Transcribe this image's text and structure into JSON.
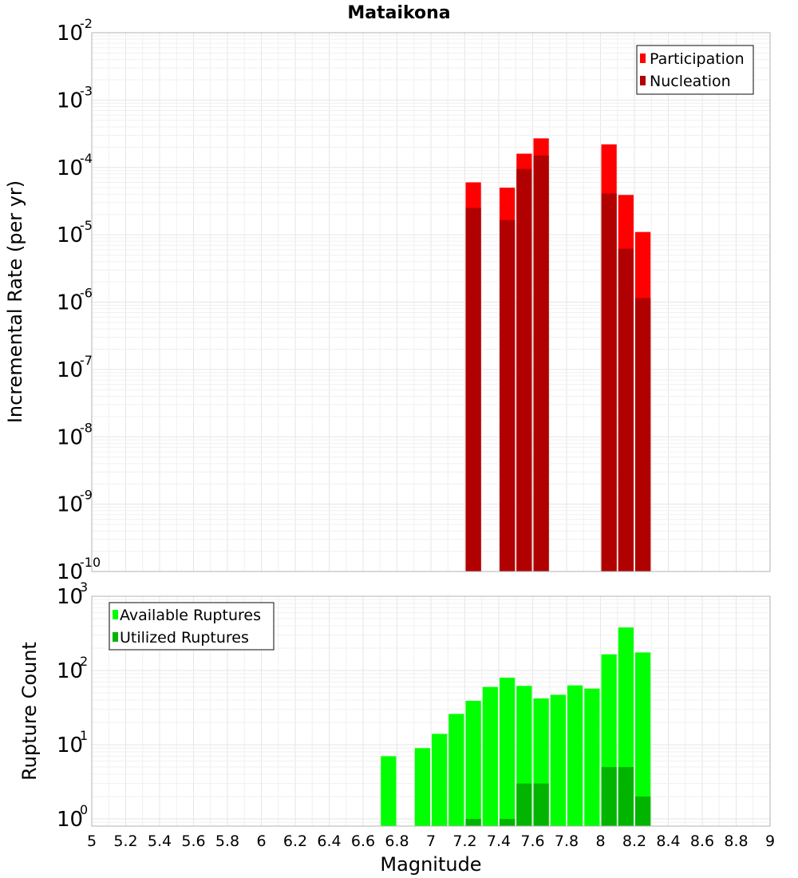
{
  "chart_data": [
    {
      "type": "bar",
      "title": "Mataikona",
      "xlabel": "",
      "ylabel": "Incremental Rate (per yr)",
      "yscale": "log",
      "ylim": [
        1e-10,
        0.01
      ],
      "xlim": [
        5,
        9
      ],
      "legend_position": "top-right",
      "bar_width": 0.1,
      "y_tick_bases": [
        "10",
        "10",
        "10",
        "10",
        "10",
        "10",
        "10",
        "10",
        "10"
      ],
      "y_tick_exps": [
        "-10",
        "-9",
        "-8",
        "-7",
        "-6",
        "-5",
        "-4",
        "-3",
        "-2"
      ],
      "series": [
        {
          "name": "Participation",
          "color": "#ff0000",
          "x": [
            7.25,
            7.45,
            7.55,
            7.65,
            8.05,
            8.15,
            8.25
          ],
          "values": [
            6e-05,
            5e-05,
            0.00016,
            0.00027,
            0.00022,
            3.9e-05,
            1.1e-05
          ]
        },
        {
          "name": "Nucleation",
          "color": "#b00000",
          "x": [
            7.25,
            7.45,
            7.55,
            7.65,
            8.05,
            8.15,
            8.25
          ],
          "values": [
            2.5e-05,
            1.65e-05,
            9.5e-05,
            0.00015,
            4.1e-05,
            6.2e-06,
            1.15e-06
          ]
        }
      ]
    },
    {
      "type": "bar",
      "title": "",
      "xlabel": "Magnitude",
      "ylabel": "Rupture Count",
      "yscale": "log",
      "ylim": [
        0.8,
        1000
      ],
      "xlim": [
        5,
        9
      ],
      "legend_position": "top-left",
      "bar_width": 0.1,
      "x_ticks": [
        "5",
        "5.2",
        "5.4",
        "5.6",
        "5.8",
        "6",
        "6.2",
        "6.4",
        "6.6",
        "6.8",
        "7",
        "7.2",
        "7.4",
        "7.6",
        "7.8",
        "8",
        "8.2",
        "8.4",
        "8.6",
        "8.8",
        "9"
      ],
      "y_tick_bases": [
        "10",
        "10",
        "10",
        "10"
      ],
      "y_tick_exps": [
        "0",
        "1",
        "2",
        "3"
      ],
      "series": [
        {
          "name": "Available Ruptures",
          "color": "#00ff00",
          "x": [
            6.75,
            6.95,
            7.05,
            7.15,
            7.25,
            7.35,
            7.45,
            7.55,
            7.65,
            7.75,
            7.85,
            7.95,
            8.05,
            8.15,
            8.25
          ],
          "values": [
            7,
            9,
            14,
            26,
            39,
            60,
            80,
            62,
            42,
            47,
            63,
            57,
            165,
            380,
            175
          ]
        },
        {
          "name": "Utilized Ruptures",
          "color": "#00b400",
          "x": [
            7.25,
            7.45,
            7.55,
            7.65,
            8.05,
            8.15,
            8.25
          ],
          "values": [
            1,
            1,
            3,
            3,
            5,
            5,
            2
          ]
        }
      ]
    }
  ]
}
